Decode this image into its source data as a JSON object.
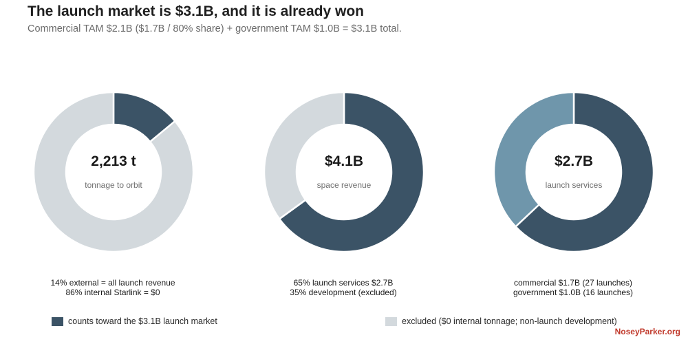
{
  "header": {
    "title": "The launch market is $3.1B, and it is already won",
    "subtitle": "Commercial TAM $2.1B ($1.7B / 80% share) + government TAM $1.0B = $3.1B total."
  },
  "chart_data": [
    {
      "type": "pie",
      "center_value": "2,213 t",
      "center_label": "tonnage to orbit",
      "slices": [
        {
          "value": 14,
          "color": "#3b5366"
        },
        {
          "value": 86,
          "color": "#d3d9dd"
        }
      ],
      "notes": [
        "14% external = all launch revenue",
        "86% internal Starlink = $0"
      ]
    },
    {
      "type": "pie",
      "center_value": "$4.1B",
      "center_label": "space revenue",
      "slices": [
        {
          "value": 65,
          "color": "#3b5366"
        },
        {
          "value": 35,
          "color": "#d3d9dd"
        }
      ],
      "notes": [
        "65% launch services $2.7B",
        "35% development (excluded)"
      ]
    },
    {
      "type": "pie",
      "center_value": "$2.7B",
      "center_label": "launch services",
      "slices": [
        {
          "value": 63,
          "color": "#3b5366"
        },
        {
          "value": 37,
          "color": "#6f96ab"
        }
      ],
      "notes": [
        "commercial $1.7B (27 launches)",
        "government $1.0B (16 launches)"
      ]
    }
  ],
  "legend": [
    {
      "label": "counts toward the $3.1B launch market",
      "color": "#3b5366"
    },
    {
      "label": "excluded ($0 internal tonnage; non-launch development)",
      "color": "#d3d9dd"
    }
  ],
  "brand": "NoseyParker.org"
}
